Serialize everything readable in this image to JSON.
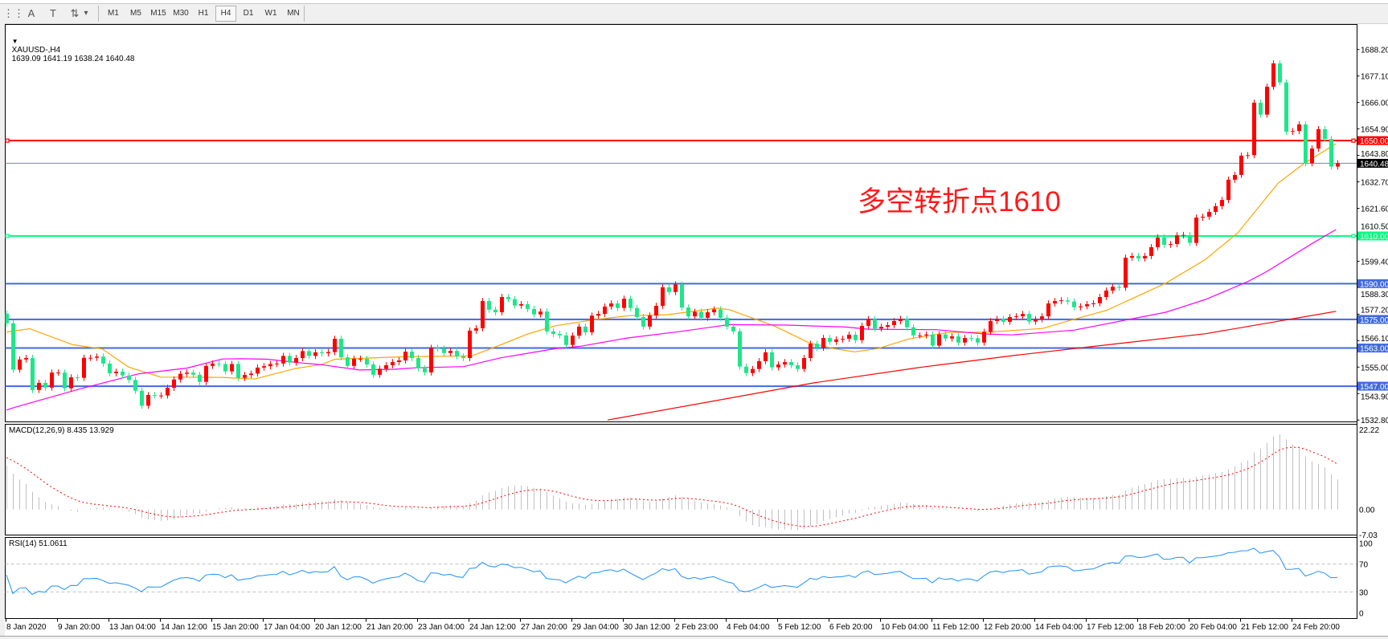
{
  "toolbar": {
    "tools": [
      {
        "name": "grid-properties-icon",
        "glyph": "⋮⋮"
      },
      {
        "name": "text-tool-icon",
        "glyph": "A"
      },
      {
        "name": "text-label-tool-icon",
        "glyph": "T"
      },
      {
        "name": "arrows-tool-icon",
        "glyph": "⇅"
      },
      {
        "name": "dropdown-icon",
        "glyph": "▾"
      }
    ],
    "timeframes": [
      "M1",
      "M5",
      "M15",
      "M30",
      "H1",
      "H4",
      "D1",
      "W1",
      "MN"
    ],
    "selected_timeframe": "H4"
  },
  "chart": {
    "collapse_glyph": "▼",
    "symbol": "XAUUSD-,H4",
    "ohlc": "1639.09 1641.19 1638.24 1640.48",
    "annotation": {
      "text": "多空转折点1610",
      "color": "#ff1a1a"
    },
    "price_axis_labels": [
      "1688.20",
      "1677.10",
      "1666.00",
      "1654.90",
      "1643.80",
      "1632.70",
      "1621.60",
      "1610.50",
      "1599.40",
      "1588.30",
      "1577.20",
      "1566.10",
      "1555.00",
      "1543.90",
      "1532.80"
    ],
    "levels": [
      {
        "price": 1650.0,
        "label": "1650.00",
        "color": "#ff0000",
        "markers": true
      },
      {
        "price": 1610.0,
        "label": "1610.00",
        "color": "#00ff80",
        "markers": true
      },
      {
        "price": 1590.0,
        "label": "1590.00",
        "color": "#4169e1",
        "markers": false
      },
      {
        "price": 1575.0,
        "label": "1575.00",
        "color": "#4169e1",
        "markers": false
      },
      {
        "price": 1563.0,
        "label": "1563.00",
        "color": "#4169e1",
        "markers": false
      },
      {
        "price": 1547.0,
        "label": "1547.00",
        "color": "#4169e1",
        "markers": false
      }
    ],
    "current_price": {
      "price": 1640.48,
      "label": "1640.48",
      "line_color": "#778899",
      "tag_color": "#000000"
    },
    "time_labels": [
      "8 Jan 2020",
      "9 Jan 20:00",
      "13 Jan 04:00",
      "14 Jan 12:00",
      "15 Jan 20:00",
      "17 Jan 04:00",
      "20 Jan 12:00",
      "21 Jan 20:00",
      "23 Jan 04:00",
      "24 Jan 12:00",
      "27 Jan 20:00",
      "29 Jan 04:00",
      "30 Jan 12:00",
      "2 Feb 23:00",
      "4 Feb 04:00",
      "5 Feb 12:00",
      "6 Feb 20:00",
      "10 Feb 04:00",
      "11 Feb 12:00",
      "12 Feb 20:00",
      "14 Feb 04:00",
      "17 Feb 12:00",
      "18 Feb 20:00",
      "20 Feb 04:00",
      "21 Feb 12:00",
      "24 Feb 20:00"
    ]
  },
  "chart_data": {
    "type": "candlestick",
    "price_range": [
      1532.8,
      1688.2
    ],
    "up_color": "#ff0000",
    "down_color": "#1ee68a",
    "first_open": 1577.4,
    "closes": [
      1573.4,
      1553.9,
      1558.2,
      1558.8,
      1545.4,
      1548.4,
      1546.4,
      1552.7,
      1552.7,
      1546.1,
      1550.7,
      1550.5,
      1558.9,
      1558.9,
      1559.4,
      1556.5,
      1552.4,
      1553.1,
      1551.5,
      1549.6,
      1545.1,
      1538.8,
      1543.3,
      1543.1,
      1543.1,
      1546.3,
      1549.8,
      1552.2,
      1552.7,
      1551.8,
      1548.8,
      1555.5,
      1556.5,
      1556.3,
      1553.2,
      1556.3,
      1550.5,
      1551.7,
      1552.3,
      1554.8,
      1555.4,
      1556.3,
      1556.5,
      1559.7,
      1556.9,
      1558.8,
      1561.7,
      1559.7,
      1561.2,
      1560.8,
      1561.3,
      1566.9,
      1559.1,
      1555.5,
      1558.5,
      1558.5,
      1556.1,
      1551.8,
      1554.3,
      1555.8,
      1557.1,
      1557.8,
      1561.5,
      1558.8,
      1554.5,
      1552.8,
      1563.1,
      1562.8,
      1560.9,
      1561.8,
      1559.5,
      1558.8,
      1570.3,
      1571.3,
      1582.7,
      1579.1,
      1578.0,
      1584.4,
      1583.5,
      1580.8,
      1581.4,
      1579.4,
      1577.1,
      1578.3,
      1570.0,
      1568.9,
      1568.3,
      1564.3,
      1568.2,
      1572.0,
      1569.6,
      1576.6,
      1577.3,
      1580.4,
      1581.7,
      1579.8,
      1583.7,
      1579.8,
      1576.0,
      1572.0,
      1576.6,
      1580.7,
      1588.5,
      1586.5,
      1589.7,
      1580.0,
      1576.3,
      1578.2,
      1575.7,
      1578.0,
      1579.2,
      1575.7,
      1572.0,
      1570.0,
      1555.2,
      1552.5,
      1554.2,
      1557.5,
      1561.2,
      1554.9,
      1556.1,
      1557.1,
      1555.8,
      1554.2,
      1558.8,
      1564.8,
      1563.1,
      1567.2,
      1565.6,
      1566.6,
      1566.9,
      1568.6,
      1566.3,
      1572.3,
      1575.1,
      1571.2,
      1571.9,
      1572.6,
      1574.3,
      1575.2,
      1571.7,
      1568.3,
      1568.3,
      1568.7,
      1564.0,
      1568.7,
      1567.0,
      1567.9,
      1565.3,
      1567.2,
      1567.1,
      1565.3,
      1569.8,
      1574.3,
      1575.2,
      1574.0,
      1576.0,
      1576.3,
      1577.3,
      1574.1,
      1575.1,
      1576.3,
      1581.7,
      1582.7,
      1583.0,
      1582.5,
      1580.1,
      1580.5,
      1581.4,
      1581.8,
      1584.4,
      1587.1,
      1588.7,
      1588.3,
      1600.9,
      1601.6,
      1600.6,
      1601.6,
      1605.3,
      1609.4,
      1606.3,
      1606.6,
      1610.3,
      1610.4,
      1607.1,
      1617.7,
      1618.1,
      1620.1,
      1622.5,
      1625.1,
      1633.6,
      1635.6,
      1643.7,
      1643.9,
      1665.9,
      1660.9,
      1672.6,
      1682.4,
      1674.4,
      1653.7,
      1654.0,
      1656.8,
      1640.5,
      1646.7,
      1654.8,
      1650.7,
      1639.1,
      1640.48
    ],
    "moving_averages": [
      {
        "color": "#ffa500",
        "points": [
          [
            0,
            1569.7
          ],
          [
            3.6,
            1571.1
          ],
          [
            10.3,
            1564.4
          ],
          [
            14.9,
            1562.6
          ],
          [
            19,
            1555.0
          ],
          [
            24,
            1550.8
          ],
          [
            33.6,
            1550.7
          ],
          [
            38.6,
            1550.0
          ],
          [
            44.9,
            1554.4
          ],
          [
            49,
            1556.1
          ],
          [
            51.1,
            1558.3
          ],
          [
            61.5,
            1559.3
          ],
          [
            72.4,
            1559.7
          ],
          [
            76.9,
            1564.4
          ],
          [
            81.1,
            1568.9
          ],
          [
            85.3,
            1572.3
          ],
          [
            91.5,
            1574.9
          ],
          [
            96.9,
            1576.6
          ],
          [
            102.8,
            1577.0
          ],
          [
            110.6,
            1579.7
          ],
          [
            112.4,
            1579.1
          ],
          [
            119.4,
            1572.3
          ],
          [
            124.9,
            1565.1
          ],
          [
            128.6,
            1562.8
          ],
          [
            131.9,
            1561.4
          ],
          [
            135.6,
            1562.8
          ],
          [
            140.3,
            1566.8
          ],
          [
            146.5,
            1569.5
          ],
          [
            153,
            1569.7
          ],
          [
            157.1,
            1570.5
          ],
          [
            161.1,
            1571.2
          ],
          [
            166.5,
            1575.4
          ],
          [
            171.1,
            1578.8
          ],
          [
            180.3,
            1590.2
          ],
          [
            186.5,
            1600.2
          ],
          [
            191.5,
            1611.3
          ],
          [
            197.8,
            1632.2
          ],
          [
            201.9,
            1640.6
          ],
          [
            206.8,
            1648.7
          ]
        ]
      },
      {
        "color": "#ff00ff",
        "points": [
          [
            0,
            1537.0
          ],
          [
            1.5,
            1538.3
          ],
          [
            11.5,
            1545.9
          ],
          [
            20.6,
            1552.2
          ],
          [
            28.1,
            1554.6
          ],
          [
            33.6,
            1558.4
          ],
          [
            36.5,
            1558.5
          ],
          [
            40.6,
            1558.3
          ],
          [
            46.1,
            1556.7
          ],
          [
            49,
            1556.0
          ],
          [
            54.9,
            1553.8
          ],
          [
            60.3,
            1554.1
          ],
          [
            63.6,
            1554.7
          ],
          [
            71.1,
            1555.2
          ],
          [
            76.9,
            1558.9
          ],
          [
            85.3,
            1562.7
          ],
          [
            89.4,
            1563.8
          ],
          [
            96.5,
            1567.2
          ],
          [
            104.9,
            1570.0
          ],
          [
            112.4,
            1572.8
          ],
          [
            121.5,
            1572.6
          ],
          [
            130.6,
            1571.8
          ],
          [
            134,
            1570.9
          ],
          [
            144.6,
            1570.7
          ],
          [
            152.1,
            1568.9
          ],
          [
            156.3,
            1568.5
          ],
          [
            166,
            1570.5
          ],
          [
            180.3,
            1578.0
          ],
          [
            186.5,
            1583.4
          ],
          [
            193.1,
            1590.9
          ],
          [
            196.1,
            1595.2
          ],
          [
            203.1,
            1606.9
          ],
          [
            206.8,
            1612.7
          ]
        ]
      },
      {
        "color": "#ff0000",
        "points": [
          [
            93.5,
            1532.8
          ],
          [
            109.6,
            1540.6
          ],
          [
            125.6,
            1548.4
          ],
          [
            142.4,
            1555.0
          ],
          [
            146.3,
            1556.3
          ],
          [
            157,
            1560.0
          ],
          [
            186.5,
            1569.0
          ],
          [
            206.8,
            1578.4
          ]
        ]
      }
    ]
  },
  "macd": {
    "title": "MACD(12,26,9) 8.435 13.929",
    "axis_labels": [
      {
        "value": 22.22,
        "label": "22.22"
      },
      {
        "value": 0,
        "label": "0.00"
      },
      {
        "value": -7.03,
        "label": "-7.03"
      }
    ],
    "histogram_color": "#c0c0c0",
    "signal_color": "#ff0000"
  },
  "rsi": {
    "title": "RSI(14) 51.0611",
    "axis_labels": [
      {
        "value": 100,
        "label": "100"
      },
      {
        "value": 70,
        "label": "70"
      },
      {
        "value": 30,
        "label": "30"
      },
      {
        "value": 0,
        "label": "0"
      }
    ],
    "levels": [
      70,
      30
    ],
    "line_color": "#1e90ff"
  }
}
